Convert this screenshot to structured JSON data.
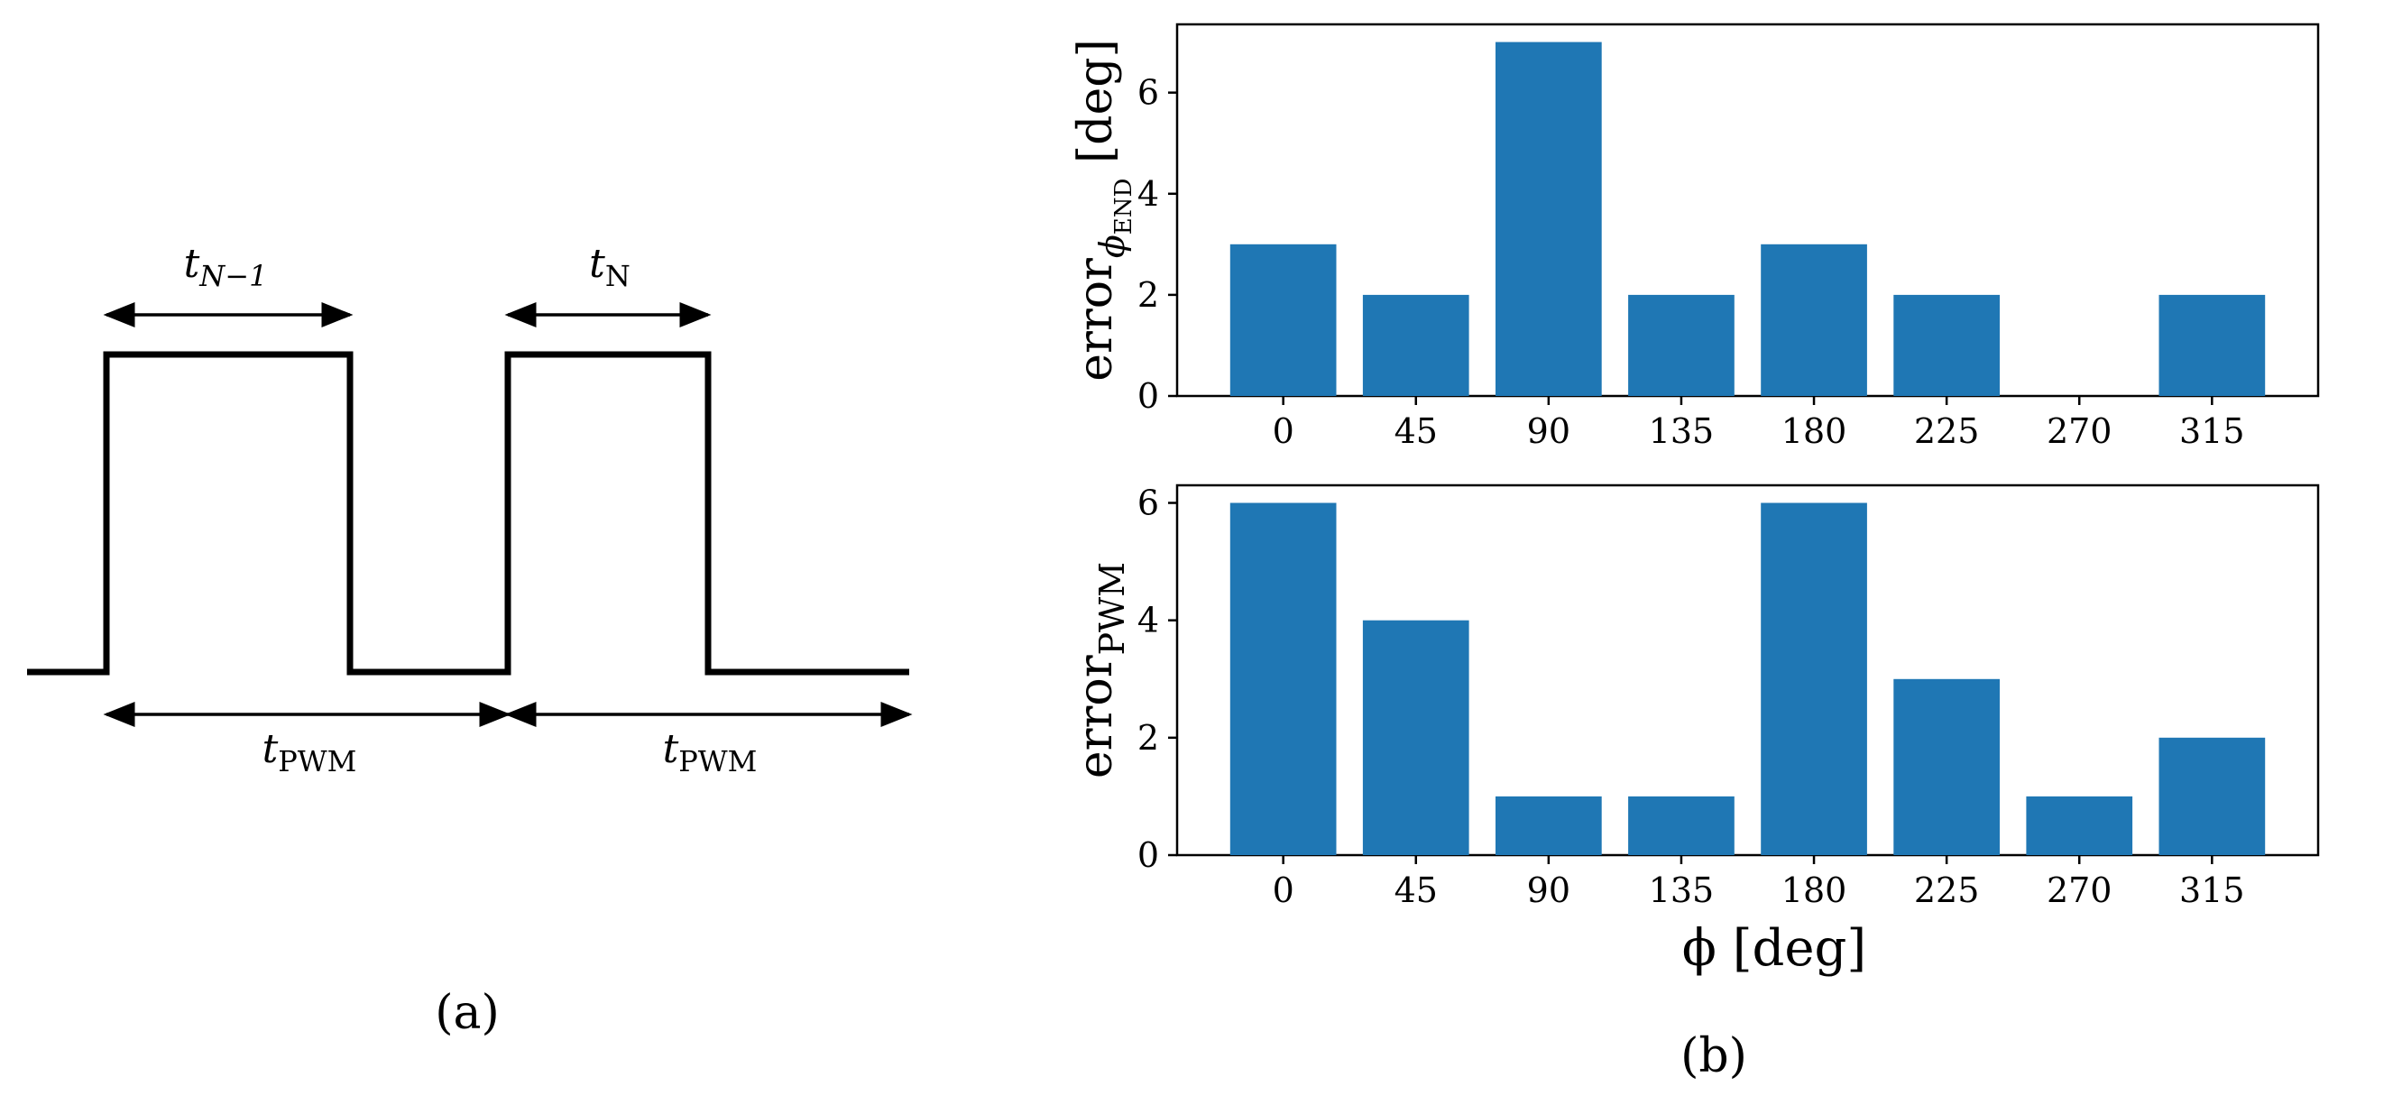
{
  "panel_a": {
    "label": "(a)",
    "t_prev": {
      "base": "t",
      "sub": "N−1"
    },
    "t_curr": {
      "base": "t",
      "sub": "N"
    },
    "t_pwm_1": {
      "base": "t",
      "sub": "PWM"
    },
    "t_pwm_2": {
      "base": "t",
      "sub": "PWM"
    }
  },
  "panel_b": {
    "label": "(b)",
    "xlabel": "ϕ [deg]"
  },
  "colors": {
    "bar": "#1f77b4",
    "axis": "#000000"
  },
  "chart_data": [
    {
      "type": "bar",
      "categories": [
        "0",
        "45",
        "90",
        "135",
        "180",
        "225",
        "270",
        "315"
      ],
      "values": [
        3,
        2,
        7,
        2,
        3,
        2,
        0,
        2
      ],
      "ylabel": {
        "base": "error",
        "sub": "ϕ",
        "subsub": "END",
        "unit": " [deg]"
      },
      "yticks": [
        0,
        2,
        4,
        6
      ],
      "ylim": [
        0,
        7.35
      ]
    },
    {
      "type": "bar",
      "categories": [
        "0",
        "45",
        "90",
        "135",
        "180",
        "225",
        "270",
        "315"
      ],
      "values": [
        6,
        4,
        1,
        1,
        6,
        3,
        1,
        2
      ],
      "ylabel": {
        "base": "error",
        "sub": "PWM"
      },
      "yticks": [
        0,
        2,
        4,
        6
      ],
      "ylim": [
        0,
        6.3
      ],
      "xlabel": "ϕ [deg]"
    }
  ]
}
